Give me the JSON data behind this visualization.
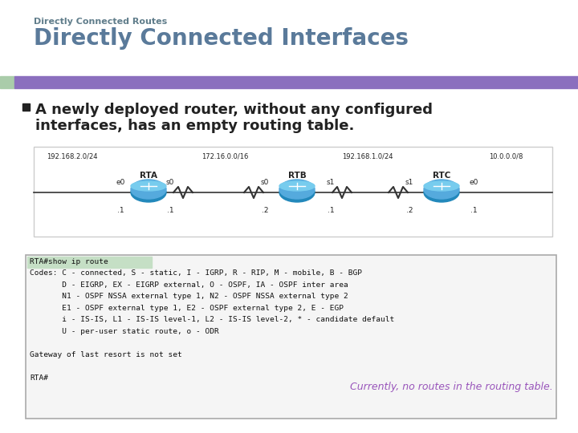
{
  "subtitle": "Directly Connected Routes",
  "title": "Directly Connected Interfaces",
  "subtitle_color": "#607d8b",
  "title_color": "#5a7a9a",
  "bullet_text_line1": "A newly deployed router, without any configured",
  "bullet_text_line2": "interfaces, has an empty routing table.",
  "bullet_color": "#222222",
  "accent_bar_color": "#8b6fbe",
  "accent_bar_left_color": "#aaccaa",
  "bg_color": "#ffffff",
  "terminal_bg": "#f5f5f5",
  "terminal_border": "#aaaaaa",
  "terminal_highlight_bg": "#c5dfc5",
  "terminal_text_color": "#111111",
  "annotation_color": "#9955bb",
  "terminal_lines": [
    "RTA#show ip route",
    "Codes: C - connected, S - static, I - IGRP, R - RIP, M - mobile, B - BGP",
    "       D - EIGRP, EX - EIGRP external, O - OSPF, IA - OSPF inter area",
    "       N1 - OSPF NSSA external type 1, N2 - OSPF NSSA external type 2",
    "       E1 - OSPF external type 1, E2 - OSPF external type 2, E - EGP",
    "       i - IS-IS, L1 - IS-IS level-1, L2 - IS-IS level-2, * - candidate default",
    "       U - per-user static route, o - ODR",
    "",
    "Gateway of last resort is not set",
    "",
    "RTA#"
  ],
  "annotation_text": "Currently, no routes in the routing table.",
  "network_labels": [
    "192.168.2.0/24",
    "172.16.0.0/16",
    "192.168.1.0/24",
    "10.0.0.0/8"
  ],
  "router_labels": [
    "RTA",
    "RTB",
    "RTC"
  ],
  "interface_labels_top": [
    "e0",
    "s0",
    "s0",
    "s1",
    "s1",
    "e0"
  ],
  "interface_labels_bot": [
    ".1",
    ".1",
    ".2",
    ".1",
    ".2",
    ".1"
  ],
  "router_color_dark": "#2288bb",
  "router_color_light": "#55aadd",
  "router_color_top": "#77ccee",
  "line_color": "#333333",
  "diagram_box_color": "#cccccc"
}
